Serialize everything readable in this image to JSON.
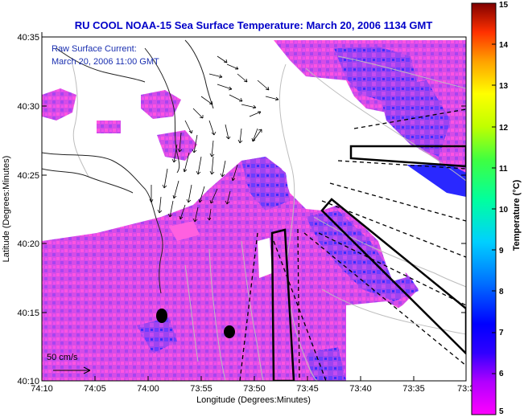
{
  "title": "RU COOL   NOAA-15  Sea Surface Temperature:  March 20, 2006 1134 GMT",
  "legend": {
    "line1": "Raw Surface Current:",
    "line2": "March 20, 2006 11:00 GMT"
  },
  "scale_label": "50 cm/s",
  "axes": {
    "xlabel": "Longitude (Degrees:Minutes)",
    "ylabel": "Latitude (Degrees:Minutes)",
    "x_ticks": [
      "74:10",
      "74:05",
      "74:00",
      "73:55",
      "73:50",
      "73:45",
      "73:40",
      "73:35",
      "73:3"
    ],
    "y_ticks": [
      "40:35",
      "40:30",
      "40:25",
      "40:20",
      "40:15",
      "40:10"
    ]
  },
  "colorbar": {
    "label": "Temperature (°C)",
    "min": 5,
    "max": 15,
    "ticks": [
      "15",
      "14",
      "13",
      "12",
      "11",
      "10",
      "9",
      "8",
      "7",
      "6",
      "5"
    ]
  },
  "colors": {
    "title": "#0000c8",
    "legend_text": "#1a2fb0",
    "sst_low": "#ff4fd8",
    "sst_mid": "#b040ff",
    "sst_high": "#2020ff"
  }
}
